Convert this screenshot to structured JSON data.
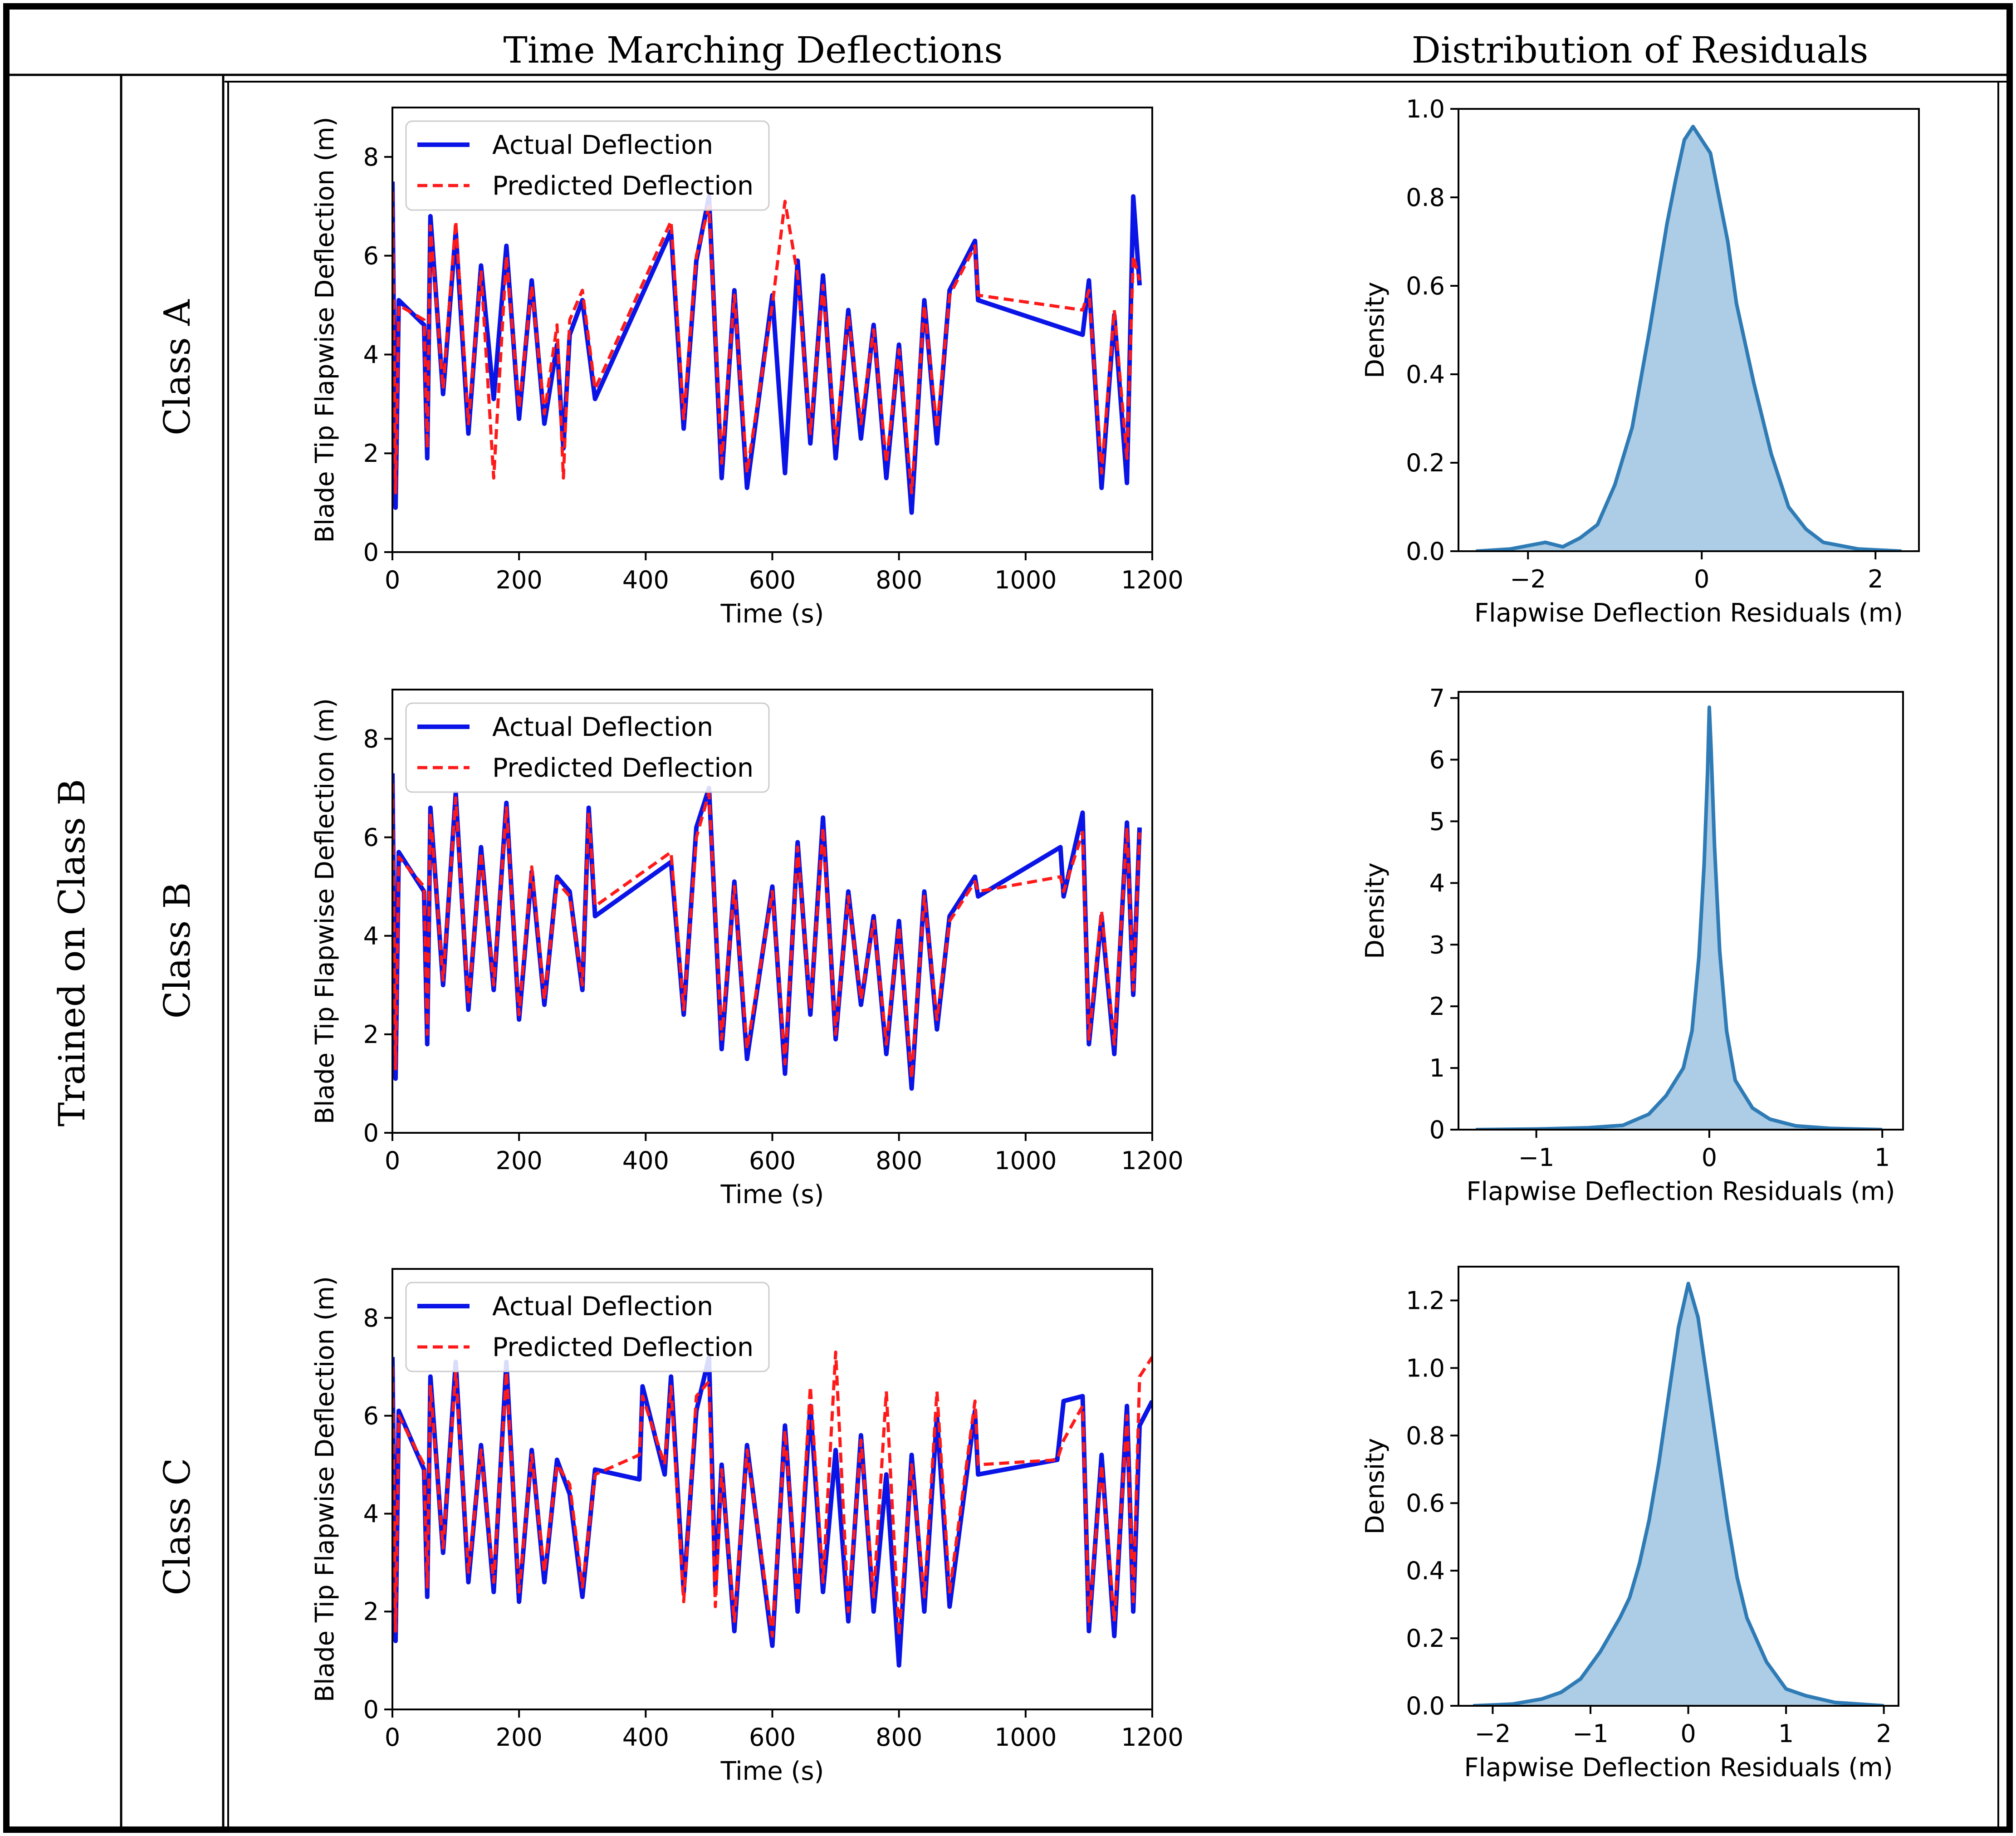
{
  "header": {
    "col1": "Time Marching Deflections",
    "col2": "Distribution of Residuals"
  },
  "row_group_label": "Trained on Class B",
  "rows": [
    {
      "label": "Class A"
    },
    {
      "label": "Class B"
    },
    {
      "label": "Class C"
    }
  ],
  "colors": {
    "actual": "#0a14e6",
    "predicted": "#ff1a1a",
    "kde_line": "#2f7bb6",
    "kde_fill": "#9dc4e0"
  },
  "chart_data": [
    {
      "type": "line",
      "panel": "Class A time series",
      "xlabel": "Time (s)",
      "ylabel": "Blade Tip Flapwise Deflection (m)",
      "xlim": [
        0,
        1200
      ],
      "ylim": [
        0,
        9
      ],
      "xticks": [
        0,
        200,
        400,
        600,
        800,
        1000,
        1200
      ],
      "yticks": [
        0,
        2,
        4,
        6,
        8
      ],
      "legend_position": "top-left",
      "series": [
        {
          "name": "Actual Deflection",
          "style": "solid",
          "x": [
            0,
            5,
            10,
            50,
            55,
            60,
            80,
            100,
            120,
            140,
            160,
            180,
            200,
            220,
            240,
            260,
            270,
            280,
            300,
            320,
            440,
            460,
            480,
            500,
            520,
            540,
            560,
            600,
            620,
            640,
            660,
            680,
            700,
            720,
            740,
            760,
            780,
            800,
            820,
            840,
            860,
            880,
            920,
            925,
            1090,
            1100,
            1120,
            1140,
            1160,
            1170,
            1180
          ],
          "y": [
            7.5,
            0.9,
            5.1,
            4.6,
            1.9,
            6.8,
            3.2,
            6.5,
            2.4,
            5.8,
            3.1,
            6.2,
            2.7,
            5.5,
            2.6,
            4.2,
            2.1,
            4.4,
            5.1,
            3.1,
            6.5,
            2.5,
            5.9,
            7.2,
            1.5,
            5.3,
            1.3,
            5.2,
            1.6,
            5.9,
            2.2,
            5.6,
            1.9,
            4.9,
            2.3,
            4.6,
            1.5,
            4.2,
            0.8,
            5.1,
            2.2,
            5.3,
            6.3,
            5.1,
            4.4,
            5.5,
            1.3,
            4.8,
            1.4,
            7.2,
            5.4
          ]
        },
        {
          "name": "Predicted Deflection",
          "style": "dashed",
          "x": [
            0,
            5,
            10,
            50,
            55,
            60,
            80,
            100,
            120,
            140,
            160,
            180,
            200,
            220,
            240,
            260,
            270,
            280,
            300,
            320,
            440,
            460,
            480,
            500,
            520,
            540,
            560,
            600,
            620,
            640,
            660,
            680,
            700,
            720,
            740,
            760,
            780,
            800,
            820,
            840,
            860,
            880,
            920,
            925,
            1090,
            1100,
            1120,
            1140,
            1160,
            1170,
            1180
          ],
          "y": [
            7.3,
            1.2,
            5.0,
            4.7,
            2.1,
            6.6,
            3.3,
            6.7,
            2.6,
            5.7,
            1.5,
            6.0,
            2.9,
            5.4,
            2.8,
            4.6,
            1.5,
            4.7,
            5.3,
            3.3,
            6.7,
            2.7,
            6.0,
            7.0,
            1.8,
            5.2,
            1.6,
            5.0,
            7.1,
            5.6,
            2.4,
            5.4,
            2.2,
            4.8,
            2.6,
            4.5,
            1.8,
            4.1,
            1.2,
            5.0,
            2.5,
            5.2,
            6.2,
            5.2,
            4.9,
            5.3,
            1.6,
            4.9,
            1.9,
            6.0,
            5.5
          ]
        }
      ]
    },
    {
      "type": "area",
      "panel": "Class A residual density",
      "xlabel": "Flapwise Deflection Residuals (m)",
      "ylabel": "Density",
      "xlim": [
        -2.8,
        2.5
      ],
      "ylim": [
        0,
        1.0
      ],
      "xticks": [
        -2,
        0,
        2
      ],
      "xtick_labels": [
        "−2",
        "0",
        "2"
      ],
      "yticks": [
        0.0,
        0.2,
        0.4,
        0.6,
        0.8,
        1.0
      ],
      "ytick_labels": [
        "0.0",
        "0.2",
        "0.4",
        "0.6",
        "0.8",
        "1.0"
      ],
      "x": [
        -2.6,
        -2.2,
        -1.8,
        -1.6,
        -1.4,
        -1.2,
        -1.0,
        -0.8,
        -0.6,
        -0.4,
        -0.3,
        -0.2,
        -0.1,
        0.0,
        0.1,
        0.2,
        0.3,
        0.4,
        0.6,
        0.8,
        1.0,
        1.2,
        1.4,
        1.8,
        2.3
      ],
      "y": [
        0.0,
        0.005,
        0.02,
        0.01,
        0.03,
        0.06,
        0.15,
        0.28,
        0.5,
        0.74,
        0.84,
        0.93,
        0.96,
        0.93,
        0.9,
        0.8,
        0.7,
        0.56,
        0.38,
        0.22,
        0.1,
        0.05,
        0.02,
        0.005,
        0.0
      ]
    },
    {
      "type": "line",
      "panel": "Class B time series",
      "xlabel": "Time (s)",
      "ylabel": "Blade Tip Flapwise Deflection (m)",
      "xlim": [
        0,
        1200
      ],
      "ylim": [
        0,
        9
      ],
      "xticks": [
        0,
        200,
        400,
        600,
        800,
        1000,
        1200
      ],
      "yticks": [
        0,
        2,
        4,
        6,
        8
      ],
      "legend_position": "top-left",
      "series": [
        {
          "name": "Actual Deflection",
          "style": "solid",
          "x": [
            0,
            5,
            10,
            50,
            55,
            60,
            80,
            100,
            120,
            140,
            160,
            180,
            200,
            220,
            240,
            260,
            280,
            300,
            310,
            320,
            440,
            460,
            480,
            500,
            520,
            540,
            560,
            600,
            620,
            640,
            660,
            680,
            700,
            720,
            740,
            760,
            780,
            800,
            820,
            840,
            860,
            880,
            920,
            925,
            1055,
            1060,
            1090,
            1100,
            1120,
            1140,
            1160,
            1170,
            1180
          ],
          "y": [
            7.3,
            1.1,
            5.7,
            4.9,
            1.8,
            6.6,
            3.0,
            6.9,
            2.5,
            5.8,
            2.9,
            6.7,
            2.3,
            5.3,
            2.6,
            5.2,
            4.9,
            2.9,
            6.6,
            4.4,
            5.5,
            2.4,
            6.2,
            7.0,
            1.7,
            5.1,
            1.5,
            5.0,
            1.2,
            5.9,
            2.4,
            6.4,
            1.9,
            4.9,
            2.6,
            4.4,
            1.6,
            4.3,
            0.9,
            4.9,
            2.1,
            4.4,
            5.2,
            4.8,
            5.8,
            4.8,
            6.5,
            1.8,
            4.4,
            1.6,
            6.3,
            2.8,
            6.2
          ]
        },
        {
          "name": "Predicted Deflection",
          "style": "dashed",
          "x": [
            0,
            5,
            10,
            50,
            55,
            60,
            80,
            100,
            120,
            140,
            160,
            180,
            200,
            220,
            240,
            260,
            280,
            300,
            310,
            320,
            440,
            460,
            480,
            500,
            520,
            540,
            560,
            600,
            620,
            640,
            660,
            680,
            700,
            720,
            740,
            760,
            780,
            800,
            820,
            840,
            860,
            880,
            920,
            925,
            1055,
            1060,
            1090,
            1100,
            1120,
            1140,
            1160,
            1170,
            1180
          ],
          "y": [
            7.1,
            1.3,
            5.6,
            5.0,
            2.0,
            6.5,
            3.1,
            6.8,
            2.6,
            5.7,
            3.0,
            6.6,
            2.4,
            5.4,
            2.7,
            5.1,
            4.8,
            3.0,
            6.5,
            4.6,
            5.7,
            2.5,
            6.0,
            6.9,
            1.9,
            5.0,
            1.7,
            4.9,
            1.4,
            5.8,
            2.5,
            6.2,
            2.0,
            4.8,
            2.7,
            4.3,
            1.8,
            4.2,
            1.1,
            4.8,
            2.3,
            4.3,
            5.1,
            4.9,
            5.2,
            4.9,
            6.1,
            1.9,
            4.5,
            1.8,
            6.2,
            2.9,
            6.1
          ]
        }
      ]
    },
    {
      "type": "area",
      "panel": "Class B residual density",
      "xlabel": "Flapwise Deflection Residuals (m)",
      "ylabel": "Density",
      "xlim": [
        -1.45,
        1.12
      ],
      "ylim": [
        0,
        7.1
      ],
      "xticks": [
        -1,
        0,
        1
      ],
      "xtick_labels": [
        "−1",
        "0",
        "1"
      ],
      "yticks": [
        0,
        1,
        2,
        3,
        4,
        5,
        6,
        7
      ],
      "ytick_labels": [
        "0",
        "1",
        "2",
        "3",
        "4",
        "5",
        "6",
        "7"
      ],
      "x": [
        -1.35,
        -1.0,
        -0.7,
        -0.5,
        -0.35,
        -0.25,
        -0.15,
        -0.1,
        -0.06,
        -0.03,
        -0.01,
        0.0,
        0.01,
        0.03,
        0.06,
        0.1,
        0.15,
        0.25,
        0.35,
        0.5,
        0.7,
        1.0
      ],
      "y": [
        0.0,
        0.01,
        0.03,
        0.07,
        0.25,
        0.55,
        1.0,
        1.6,
        2.8,
        4.3,
        5.8,
        6.85,
        6.2,
        4.6,
        2.9,
        1.6,
        0.8,
        0.35,
        0.17,
        0.06,
        0.02,
        0.0
      ]
    },
    {
      "type": "line",
      "panel": "Class C time series",
      "xlabel": "Time (s)",
      "ylabel": "Blade Tip Flapwise Deflection (m)",
      "xlim": [
        0,
        1200
      ],
      "ylim": [
        0,
        9
      ],
      "xticks": [
        0,
        200,
        400,
        600,
        800,
        1000,
        1200
      ],
      "yticks": [
        0,
        2,
        4,
        6,
        8
      ],
      "legend_position": "top-left",
      "series": [
        {
          "name": "Actual Deflection",
          "style": "solid",
          "x": [
            0,
            5,
            10,
            50,
            55,
            60,
            80,
            100,
            120,
            140,
            160,
            180,
            200,
            220,
            240,
            260,
            280,
            300,
            320,
            390,
            395,
            430,
            440,
            460,
            480,
            500,
            510,
            520,
            540,
            560,
            600,
            620,
            640,
            660,
            680,
            700,
            720,
            740,
            760,
            780,
            800,
            820,
            840,
            860,
            880,
            920,
            925,
            1050,
            1060,
            1090,
            1100,
            1120,
            1140,
            1160,
            1170,
            1180,
            1200
          ],
          "y": [
            7.2,
            1.4,
            6.1,
            4.9,
            2.3,
            6.8,
            3.2,
            7.1,
            2.6,
            5.4,
            2.4,
            7.1,
            2.2,
            5.3,
            2.6,
            5.1,
            4.4,
            2.3,
            4.9,
            4.7,
            6.6,
            4.8,
            6.8,
            2.4,
            6.1,
            7.2,
            2.5,
            5.0,
            1.6,
            5.4,
            1.3,
            5.8,
            2.0,
            6.2,
            2.4,
            5.3,
            1.8,
            5.6,
            2.0,
            4.8,
            0.9,
            5.2,
            2.0,
            6.0,
            2.1,
            6.1,
            4.8,
            5.1,
            6.3,
            6.4,
            1.6,
            5.2,
            1.5,
            6.2,
            2.0,
            5.8,
            6.3
          ]
        },
        {
          "name": "Predicted Deflection",
          "style": "dashed",
          "x": [
            0,
            5,
            10,
            50,
            55,
            60,
            80,
            100,
            120,
            140,
            160,
            180,
            200,
            220,
            240,
            260,
            280,
            300,
            320,
            390,
            395,
            430,
            440,
            460,
            480,
            500,
            510,
            520,
            540,
            560,
            600,
            620,
            640,
            660,
            680,
            700,
            720,
            740,
            760,
            780,
            800,
            820,
            840,
            860,
            880,
            920,
            925,
            1050,
            1060,
            1090,
            1100,
            1120,
            1140,
            1160,
            1170,
            1180,
            1200
          ],
          "y": [
            7.0,
            1.6,
            6.0,
            5.0,
            2.5,
            6.6,
            3.3,
            6.9,
            2.8,
            5.3,
            2.6,
            6.9,
            2.4,
            5.2,
            2.8,
            5.0,
            4.6,
            2.5,
            4.8,
            5.2,
            6.4,
            5.0,
            6.6,
            2.2,
            6.4,
            6.7,
            2.1,
            4.9,
            1.8,
            5.3,
            1.5,
            5.7,
            2.2,
            6.6,
            2.6,
            7.3,
            2.0,
            5.5,
            2.3,
            6.5,
            1.5,
            5.0,
            2.3,
            6.5,
            2.4,
            6.3,
            5.0,
            5.1,
            5.5,
            6.2,
            1.8,
            5.0,
            1.8,
            6.0,
            2.2,
            6.8,
            7.2
          ]
        }
      ]
    },
    {
      "type": "area",
      "panel": "Class C residual density",
      "xlabel": "Flapwise Deflection Residuals (m)",
      "ylabel": "Density",
      "xlim": [
        -2.35,
        2.15
      ],
      "ylim": [
        0,
        1.3
      ],
      "xticks": [
        -2,
        -1,
        0,
        1,
        2
      ],
      "xtick_labels": [
        "−2",
        "−1",
        "0",
        "1",
        "2"
      ],
      "yticks": [
        0.0,
        0.2,
        0.4,
        0.6,
        0.8,
        1.0,
        1.2
      ],
      "ytick_labels": [
        "0.0",
        "0.2",
        "0.4",
        "0.6",
        "0.8",
        "1.0",
        "1.2"
      ],
      "x": [
        -2.2,
        -1.8,
        -1.5,
        -1.3,
        -1.1,
        -0.9,
        -0.7,
        -0.6,
        -0.5,
        -0.4,
        -0.3,
        -0.2,
        -0.1,
        0.0,
        0.1,
        0.2,
        0.3,
        0.4,
        0.5,
        0.6,
        0.8,
        1.0,
        1.2,
        1.5,
        2.0
      ],
      "y": [
        0.0,
        0.005,
        0.02,
        0.04,
        0.08,
        0.16,
        0.26,
        0.32,
        0.42,
        0.55,
        0.72,
        0.92,
        1.12,
        1.25,
        1.15,
        0.95,
        0.75,
        0.55,
        0.38,
        0.26,
        0.13,
        0.05,
        0.03,
        0.01,
        0.0
      ]
    }
  ]
}
